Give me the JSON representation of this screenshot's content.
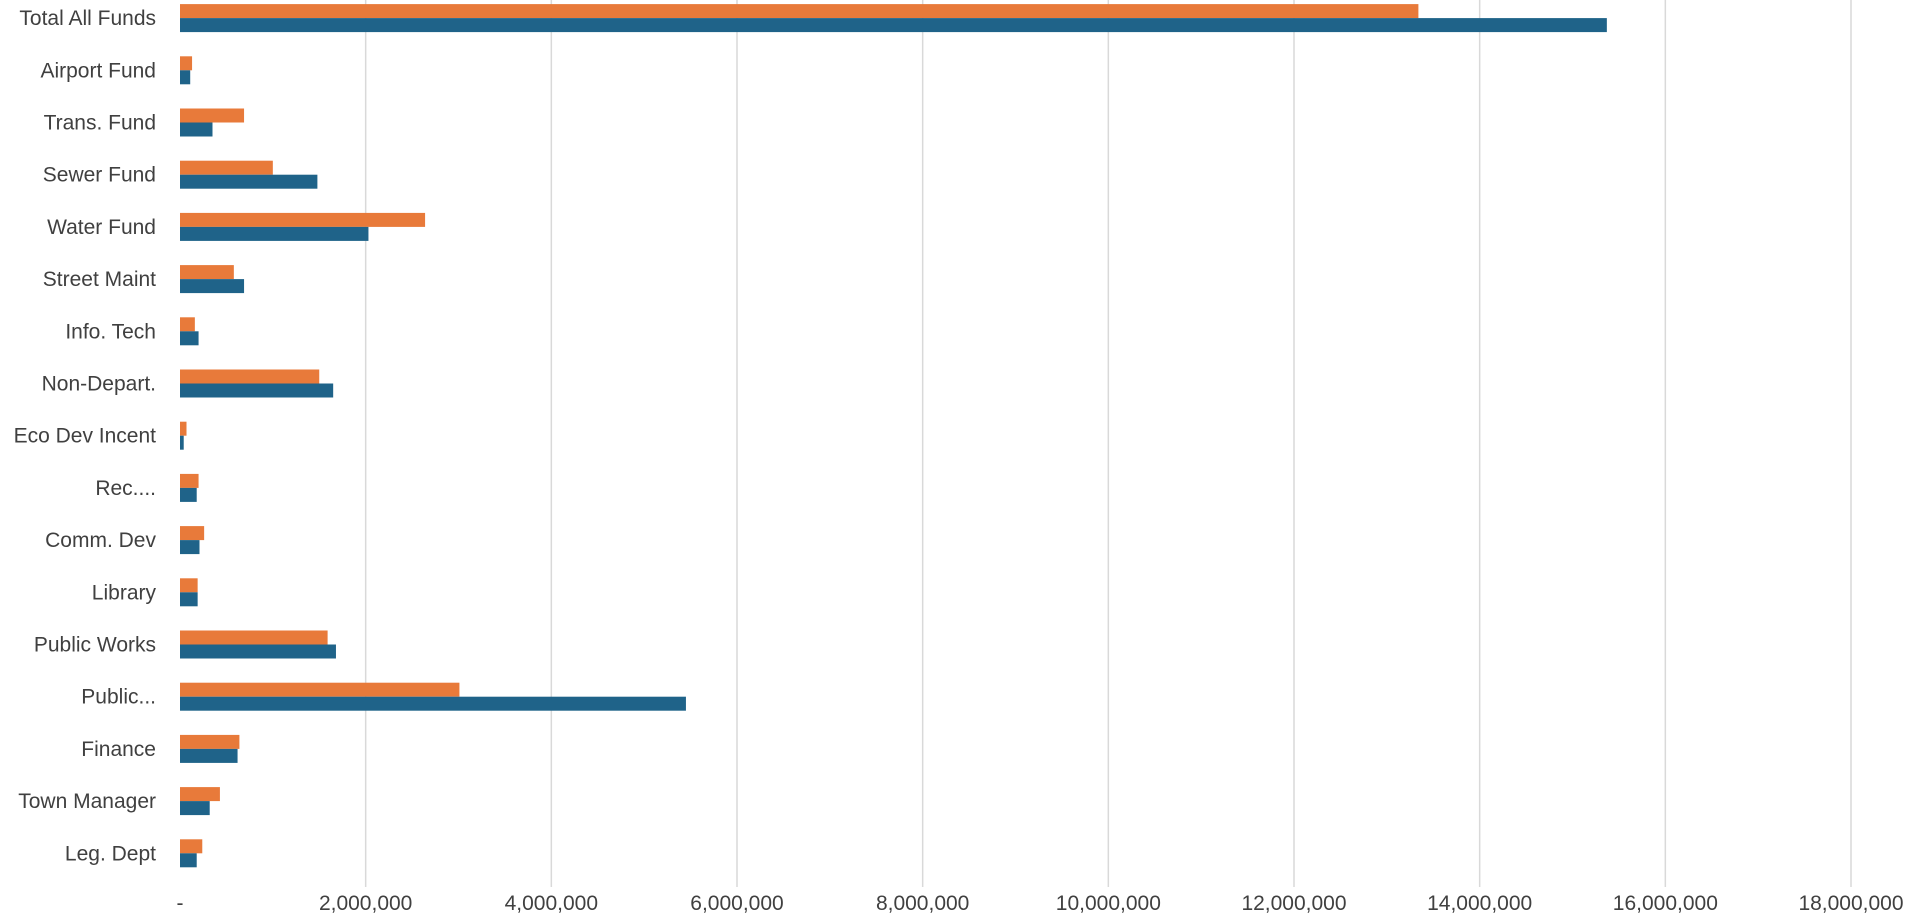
{
  "chart_data": {
    "type": "bar",
    "orientation": "horizontal",
    "title": "",
    "xlabel": "",
    "ylabel": "",
    "categories": [
      "Leg. Dept",
      "Town Manager",
      "Finance",
      "Public...",
      "Public Works",
      "Library",
      "Comm. Dev",
      "Rec....",
      "Eco Dev Incent",
      "Non-Depart.",
      "Info. Tech",
      "Street Maint",
      "Water Fund",
      "Sewer Fund",
      "Trans. Fund",
      "Airport Fund",
      "Total All Funds"
    ],
    "series": [
      {
        "color": "#1F6389",
        "values": [
          180000,
          320000,
          620000,
          5450000,
          1680000,
          190000,
          210000,
          180000,
          40000,
          1650000,
          200000,
          690000,
          2030000,
          1480000,
          350000,
          110000,
          15370000
        ]
      },
      {
        "color": "#E87A3A",
        "values": [
          240000,
          430000,
          640000,
          3010000,
          1590000,
          190000,
          260000,
          200000,
          70000,
          1500000,
          160000,
          580000,
          2640000,
          1000000,
          690000,
          130000,
          13340000
        ]
      }
    ],
    "xlim": [
      0,
      18000000
    ],
    "xticks": [
      0,
      2000000,
      4000000,
      6000000,
      8000000,
      10000000,
      12000000,
      14000000,
      16000000,
      18000000
    ],
    "xtick_labels": [
      "-",
      "2,000,000",
      "4,000,000",
      "6,000,000",
      "8,000,000",
      "10,000,000",
      "12,000,000",
      "14,000,000",
      "16,000,000",
      "18,000,000"
    ],
    "grid": true,
    "legend": "none",
    "colors": {
      "gridline": "#D9D9D9",
      "axis_text": "#404040"
    }
  }
}
